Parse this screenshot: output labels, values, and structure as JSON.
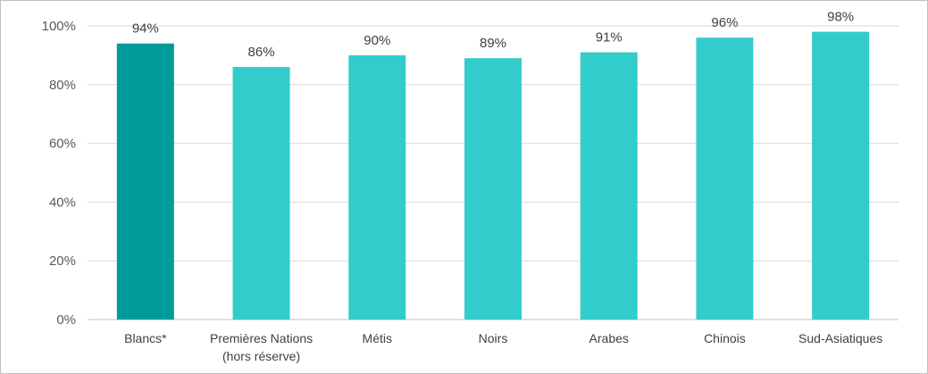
{
  "chart_data": {
    "type": "bar",
    "categories": [
      [
        "Blancs*"
      ],
      [
        "Premières Nations",
        "(hors réserve)"
      ],
      [
        "Métis"
      ],
      [
        "Noirs"
      ],
      [
        "Arabes"
      ],
      [
        "Chinois"
      ],
      [
        "Sud-Asiatiques"
      ]
    ],
    "values": [
      94,
      86,
      90,
      89,
      91,
      96,
      98
    ],
    "data_labels": [
      "94%",
      "86%",
      "90%",
      "89%",
      "91%",
      "96%",
      "98%"
    ],
    "ylim": [
      0,
      100
    ],
    "yticks": [
      0,
      20,
      40,
      60,
      80,
      100
    ],
    "ytick_labels": [
      "0%",
      "20%",
      "40%",
      "60%",
      "80%",
      "100%"
    ],
    "grid": true,
    "legend": "none",
    "colors": {
      "highlight": "#009b9b",
      "bar": "#33cccc",
      "grid": "#d9d9d9",
      "axis": "#bfbfbf"
    },
    "highlight_index": 0
  }
}
